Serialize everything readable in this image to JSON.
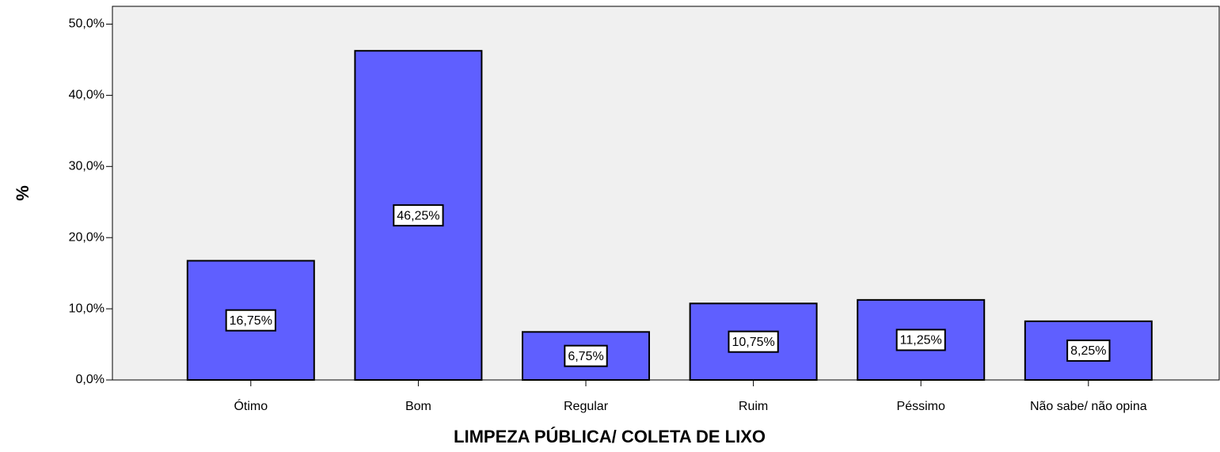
{
  "chart_data": {
    "type": "bar",
    "x_label": "LIMPEZA PÚBLICA/ COLETA DE LIXO",
    "y_label": "%",
    "categories": [
      "Ótimo",
      "Bom",
      "Regular",
      "Ruim",
      "Péssimo",
      "Não sabe/ não opina"
    ],
    "values": [
      16.75,
      46.25,
      6.75,
      10.75,
      11.25,
      8.25
    ],
    "value_labels": [
      "16,75%",
      "46,25%",
      "6,75%",
      "10,75%",
      "11,25%",
      "8,25%"
    ],
    "color": "#5f5fff",
    "ylim": [
      0,
      52.5
    ],
    "yticks": [
      {
        "value": 0,
        "label": "0,0%"
      },
      {
        "value": 10,
        "label": "10,0%"
      },
      {
        "value": 20,
        "label": "20,0%"
      },
      {
        "value": 30,
        "label": "30,0%"
      },
      {
        "value": 40,
        "label": "40,0%"
      },
      {
        "value": 50,
        "label": "50,0%"
      }
    ]
  }
}
